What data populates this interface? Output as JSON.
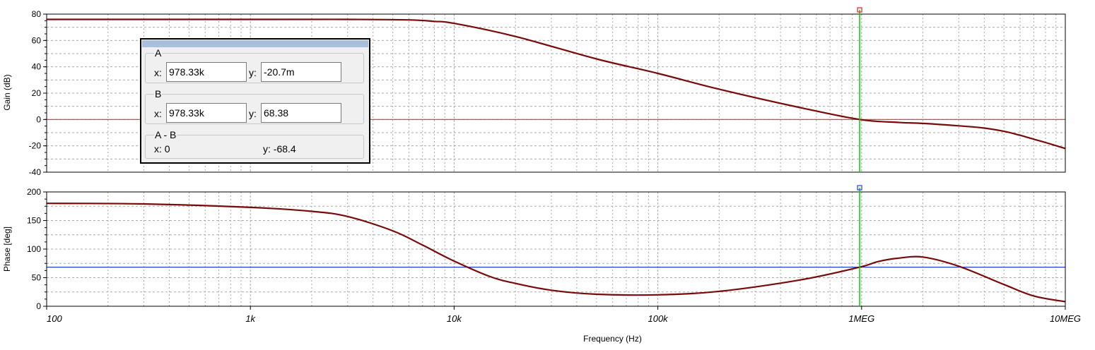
{
  "chart_data": [
    {
      "type": "line",
      "ylabel": "Gain (dB)",
      "x_scale": "log",
      "xlim": [
        100,
        10000000
      ],
      "ylim": [
        -40,
        80
      ],
      "yticks": [
        -40,
        -20,
        0,
        20,
        40,
        60,
        80
      ],
      "grid": true,
      "reference_line": {
        "y": 0,
        "color": "#e03030"
      },
      "series": [
        {
          "color": "#7a0a0a",
          "x": [
            100,
            1000,
            3000,
            6000,
            8000,
            10000,
            20000,
            50000,
            100000,
            200000,
            500000,
            978330,
            1500000,
            2000000,
            3000000,
            4000000,
            5000000,
            6000000,
            7000000,
            8000000,
            10000000
          ],
          "y": [
            76,
            76,
            76,
            75.6,
            74.5,
            73,
            63,
            46,
            35,
            23,
            9,
            0,
            -2.2,
            -3,
            -4.8,
            -6.5,
            -9,
            -12,
            -15,
            -17.5,
            -22
          ]
        }
      ]
    },
    {
      "type": "line",
      "ylabel": "Phase [deg]",
      "xlabel": "Frequency (Hz)",
      "x_scale": "log",
      "xlim": [
        100,
        10000000
      ],
      "xtick_values": [
        100,
        1000,
        10000,
        100000,
        1000000,
        10000000
      ],
      "xtick_labels": [
        "100",
        "1k",
        "10k",
        "100k",
        "1MEG",
        "10MEG"
      ],
      "ylim": [
        0,
        200
      ],
      "yticks": [
        0,
        50,
        100,
        150,
        200
      ],
      "grid": true,
      "reference_line": {
        "y": 68.4,
        "color": "#2040d0"
      },
      "series": [
        {
          "color": "#7a0a0a",
          "x": [
            100,
            300,
            1000,
            2000,
            3000,
            5000,
            7000,
            10000,
            15000,
            20000,
            30000,
            50000,
            100000,
            200000,
            500000,
            978330,
            1200000,
            1500000,
            2000000,
            3000000,
            5000000,
            7000000,
            10000000
          ],
          "y": [
            180,
            179,
            173,
            166,
            157,
            132,
            107,
            79,
            52,
            40,
            28,
            21,
            20,
            26,
            46,
            68.4,
            78,
            84,
            86,
            70,
            38,
            18,
            8
          ]
        }
      ]
    }
  ],
  "cursor": {
    "x": 978330,
    "color": "#00d000"
  },
  "cursor_panel": {
    "a": {
      "name": "A",
      "x_prefix": "x:",
      "x_value": "978.33k",
      "y_prefix": "y:",
      "y_value": "-20.7m"
    },
    "b": {
      "name": "B",
      "x_prefix": "x:",
      "x_value": "978.33k",
      "y_prefix": "y:",
      "y_value": "68.38"
    },
    "diff": {
      "name": "A - B",
      "x_text": "x:  0",
      "y_text": "y: -68.4"
    }
  }
}
